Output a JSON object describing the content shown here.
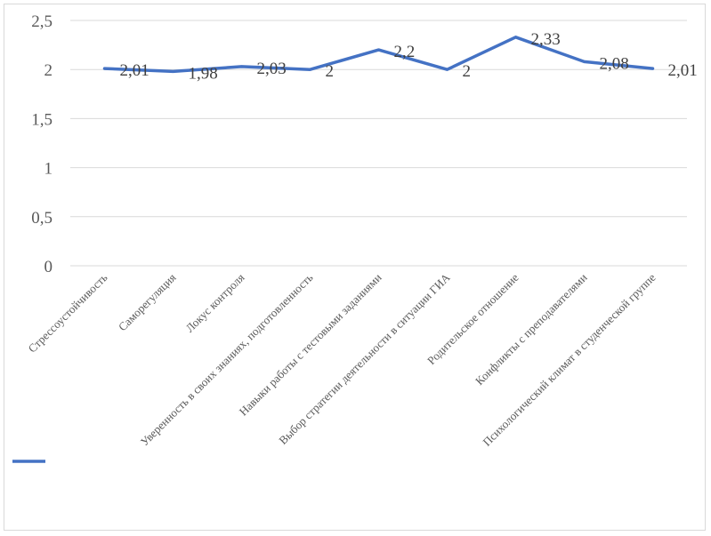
{
  "chart_data": {
    "type": "line",
    "title": "",
    "xlabel": "",
    "ylabel": "",
    "ylim": [
      0,
      2.5
    ],
    "yticks": [
      "0",
      "0,5",
      "1",
      "1,5",
      "2",
      "2,5"
    ],
    "grid": true,
    "legend": "bottom-left",
    "categories": [
      "Стрессоустойчивость",
      "Саморегуляция",
      "Локус контроля",
      "Уверенность в своих знаниях, подготовленность",
      "Навыки работы с тестовыми заданиями",
      "Выбор стратегии деятельности в ситуации ГИА",
      "Родительское отношение",
      "Конфликты с преподавателями",
      "Психологический климат в студенческой группе"
    ],
    "series": [
      {
        "values": [
          2.01,
          1.98,
          2.03,
          2.0,
          2.2,
          2.0,
          2.33,
          2.08,
          2.01
        ],
        "labels": [
          "2,01",
          "1,98",
          "2,03",
          "2",
          "2,2",
          "2",
          "2,33",
          "2,08",
          "2,01"
        ],
        "color": "#4472c4"
      }
    ]
  }
}
